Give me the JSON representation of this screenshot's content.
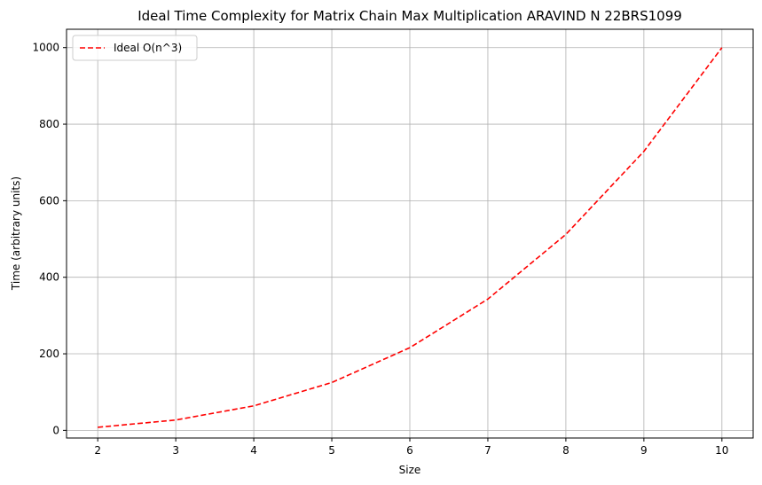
{
  "chart_data": {
    "type": "line",
    "title": "Ideal Time Complexity for Matrix Chain Max Multiplication ARAVIND N 22BRS1099",
    "xlabel": "Size",
    "ylabel": "Time (arbitrary units)",
    "xlim": [
      1.6,
      10.4
    ],
    "ylim": [
      -20,
      1048
    ],
    "xticks": [
      2,
      3,
      4,
      5,
      6,
      7,
      8,
      9,
      10
    ],
    "yticks": [
      0,
      200,
      400,
      600,
      800,
      1000
    ],
    "grid": true,
    "legend_position": "top-left",
    "series": [
      {
        "name": "Ideal O(n^3)",
        "color": "#ff0000",
        "line_style": "dashed",
        "x": [
          2,
          3,
          4,
          5,
          6,
          7,
          8,
          9,
          10
        ],
        "y": [
          8,
          27,
          64,
          125,
          216,
          343,
          512,
          729,
          1000
        ]
      }
    ]
  }
}
